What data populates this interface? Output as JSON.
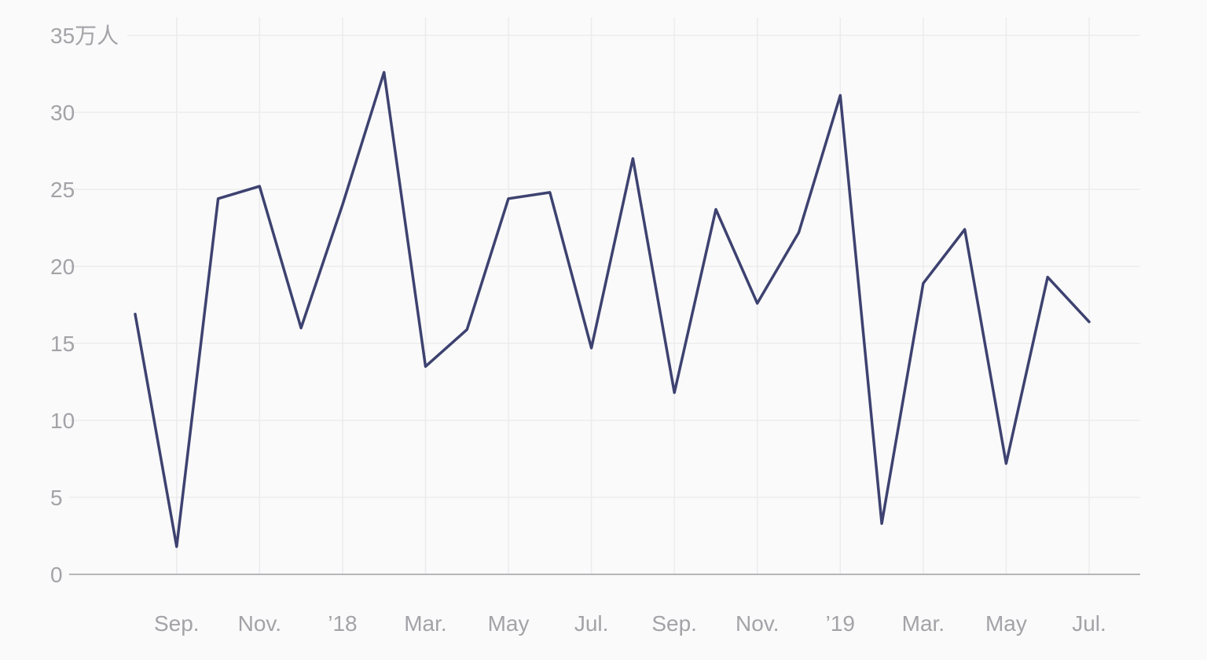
{
  "chart_data": {
    "type": "line",
    "title": "",
    "xlabel": "",
    "ylabel": "",
    "y_unit_label": "35万人",
    "ylim": [
      0,
      35
    ],
    "y_ticks": [
      0,
      5,
      10,
      15,
      20,
      25,
      30,
      35
    ],
    "grid": true,
    "x": [
      "2017-08",
      "2017-09",
      "2017-10",
      "2017-11",
      "2017-12",
      "2018-01",
      "2018-02",
      "2018-03",
      "2018-04",
      "2018-05",
      "2018-06",
      "2018-07",
      "2018-08",
      "2018-09",
      "2018-10",
      "2018-11",
      "2018-12",
      "2019-01",
      "2019-02",
      "2019-03",
      "2019-04",
      "2019-05",
      "2019-06",
      "2019-07"
    ],
    "x_ticks": [
      {
        "x": "2017-09",
        "label": "Sep."
      },
      {
        "x": "2017-11",
        "label": "Nov."
      },
      {
        "x": "2018-01",
        "label": "’18"
      },
      {
        "x": "2018-03",
        "label": "Mar."
      },
      {
        "x": "2018-05",
        "label": "May"
      },
      {
        "x": "2018-07",
        "label": "Jul."
      },
      {
        "x": "2018-09",
        "label": "Sep."
      },
      {
        "x": "2018-11",
        "label": "Nov."
      },
      {
        "x": "2019-01",
        "label": "’19"
      },
      {
        "x": "2019-03",
        "label": "Mar."
      },
      {
        "x": "2019-05",
        "label": "May"
      },
      {
        "x": "2019-07",
        "label": "Jul."
      }
    ],
    "series": [
      {
        "color": "#3d4270",
        "values": [
          16.9,
          1.8,
          24.4,
          25.2,
          16.0,
          24.0,
          32.6,
          13.5,
          15.9,
          24.4,
          24.8,
          14.7,
          27.0,
          11.8,
          23.7,
          17.6,
          22.2,
          31.1,
          3.3,
          18.9,
          22.4,
          7.2,
          19.3,
          16.4
        ]
      }
    ]
  }
}
